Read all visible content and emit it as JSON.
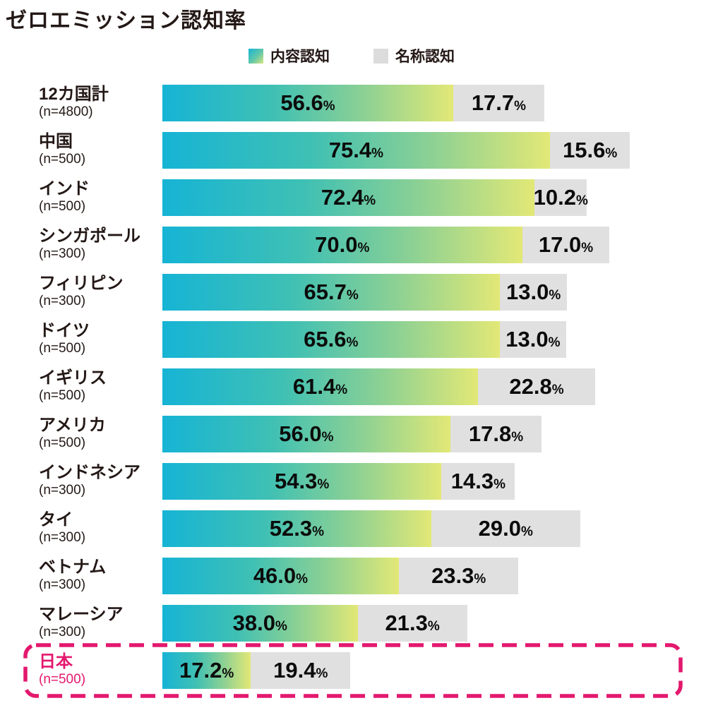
{
  "title": "ゼロエミッション認知率",
  "legend": {
    "content": {
      "label": "内容認知",
      "swatch": "teal-to-yellowgreen-gradient"
    },
    "name": {
      "label": "名称認知",
      "swatch": "light-gray"
    }
  },
  "colors": {
    "bar_gradient_start": "#16b4d5",
    "bar_gradient_end": "#e2e876",
    "name_bar": "#e0e0e0",
    "highlight_pink": "#e3186e",
    "text": "#231815"
  },
  "chart_data": {
    "type": "bar",
    "orientation": "horizontal-stacked",
    "unit": "%",
    "title": "ゼロエミッション認知率",
    "legend_position": "top-center",
    "series_names": [
      "内容認知",
      "名称認知"
    ],
    "x_range_percent": [
      0,
      100
    ],
    "rows": [
      {
        "label": "12カ国計",
        "n": "(n=4800)",
        "content": 56.6,
        "name": 17.7,
        "highlight": false
      },
      {
        "label": "中国",
        "n": "(n=500)",
        "content": 75.4,
        "name": 15.6,
        "highlight": false
      },
      {
        "label": "インド",
        "n": "(n=500)",
        "content": 72.4,
        "name": 10.2,
        "highlight": false
      },
      {
        "label": "シンガポール",
        "n": "(n=300)",
        "content": 70.0,
        "name": 17.0,
        "highlight": false
      },
      {
        "label": "フィリピン",
        "n": "(n=300)",
        "content": 65.7,
        "name": 13.0,
        "highlight": false
      },
      {
        "label": "ドイツ",
        "n": "(n=500)",
        "content": 65.6,
        "name": 13.0,
        "highlight": false
      },
      {
        "label": "イギリス",
        "n": "(n=500)",
        "content": 61.4,
        "name": 22.8,
        "highlight": false
      },
      {
        "label": "アメリカ",
        "n": "(n=500)",
        "content": 56.0,
        "name": 17.8,
        "highlight": false
      },
      {
        "label": "インドネシア",
        "n": "(n=300)",
        "content": 54.3,
        "name": 14.3,
        "highlight": false
      },
      {
        "label": "タイ",
        "n": "(n=300)",
        "content": 52.3,
        "name": 29.0,
        "highlight": false
      },
      {
        "label": "ベトナム",
        "n": "(n=300)",
        "content": 46.0,
        "name": 23.3,
        "highlight": false
      },
      {
        "label": "マレーシア",
        "n": "(n=300)",
        "content": 38.0,
        "name": 21.3,
        "highlight": false
      },
      {
        "label": "日本",
        "n": "(n=500)",
        "content": 17.2,
        "name": 19.4,
        "highlight": true
      }
    ]
  }
}
